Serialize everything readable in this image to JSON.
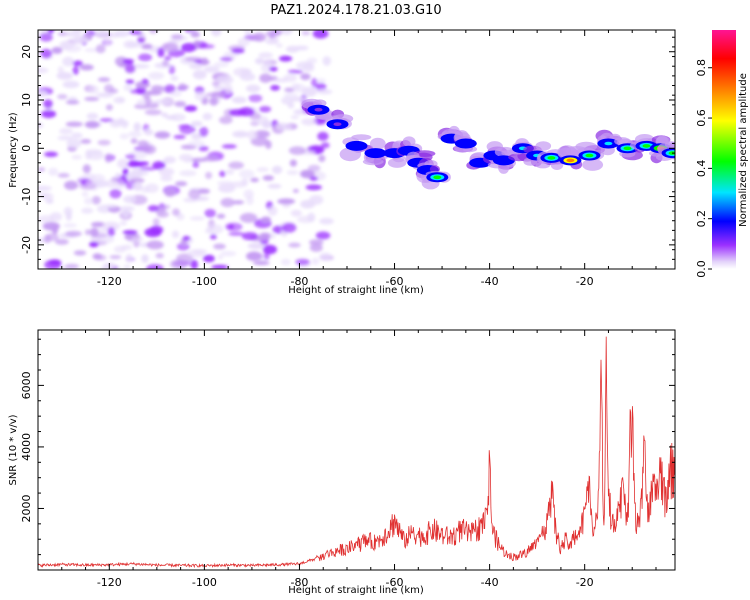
{
  "title": "PAZ1.2024.178.21.03.G10",
  "colors": {
    "snr_line": "#e03030",
    "frame": "#000000",
    "colormap": [
      "#ffffff",
      "#c8a8f4",
      "#8a2be2",
      "#0000ff",
      "#00e5ff",
      "#00ff00",
      "#ffff00",
      "#ff8000",
      "#ff0000",
      "#ff1493"
    ]
  },
  "chart_data": [
    {
      "type": "heatmap",
      "xlabel": "Height of straight line (km)",
      "ylabel": "Frequency (Hz)",
      "xlim": [
        -135,
        -1
      ],
      "ylim": [
        -25,
        24.5
      ],
      "x_ticks": [
        -120,
        -100,
        -80,
        -60,
        -40,
        -20
      ],
      "x_tick_labels": [
        "-120",
        "-100",
        "-80",
        "-60",
        "-40",
        "-20"
      ],
      "y_ticks": [
        -20,
        -10,
        0,
        10,
        20
      ],
      "y_tick_labels": [
        "-20",
        "-10",
        "0",
        "10",
        "20"
      ],
      "noise_region": {
        "x": [
          -135,
          -76
        ],
        "y": [
          -25,
          24.5
        ],
        "level": 0.12
      },
      "ridge": [
        {
          "x": -76,
          "y": 8,
          "level": 0.1
        },
        {
          "x": -72,
          "y": 5,
          "level": 0.15
        },
        {
          "x": -68,
          "y": 0.5,
          "level": 0.28
        },
        {
          "x": -64,
          "y": -1,
          "level": 0.28
        },
        {
          "x": -60,
          "y": -1,
          "level": 0.3
        },
        {
          "x": -57,
          "y": -0.5,
          "level": 0.22
        },
        {
          "x": -55,
          "y": -3,
          "level": 0.26
        },
        {
          "x": -53,
          "y": -4.5,
          "level": 0.3
        },
        {
          "x": -51,
          "y": -6,
          "level": 0.52
        },
        {
          "x": -48,
          "y": 2,
          "level": 0.22
        },
        {
          "x": -45,
          "y": 1,
          "level": 0.24
        },
        {
          "x": -42,
          "y": -3,
          "level": 0.2
        },
        {
          "x": -39,
          "y": -1.5,
          "level": 0.25
        },
        {
          "x": -37,
          "y": -2.5,
          "level": 0.22
        },
        {
          "x": -33,
          "y": 0,
          "level": 0.32
        },
        {
          "x": -30,
          "y": -1.5,
          "level": 0.4
        },
        {
          "x": -27,
          "y": -2,
          "level": 0.55
        },
        {
          "x": -23,
          "y": -2.5,
          "level": 0.85
        },
        {
          "x": -19,
          "y": -1.5,
          "level": 0.45
        },
        {
          "x": -15,
          "y": 1,
          "level": 0.35
        },
        {
          "x": -11,
          "y": 0,
          "level": 0.6
        },
        {
          "x": -7,
          "y": 0.5,
          "level": 0.55
        },
        {
          "x": -4,
          "y": 0,
          "level": 0.8
        },
        {
          "x": -1.5,
          "y": -1,
          "level": 0.45
        }
      ],
      "colorbar": {
        "label": "Normalized spectral amplitude",
        "range": [
          0,
          0.95
        ],
        "ticks": [
          0.0,
          0.2,
          0.4,
          0.6,
          0.8
        ],
        "tick_labels": [
          "0.0",
          "0.2",
          "0.4",
          "0.6",
          "0.8"
        ]
      }
    },
    {
      "type": "line",
      "xlabel": "Height of straight line (km)",
      "ylabel": "SNR (10 * v/v)",
      "xlim": [
        -135,
        -1
      ],
      "ylim": [
        0,
        7800
      ],
      "x_ticks": [
        -120,
        -100,
        -80,
        -60,
        -40,
        -20
      ],
      "x_tick_labels": [
        "-120",
        "-100",
        "-80",
        "-60",
        "-40",
        "-20"
      ],
      "y_ticks": [
        2000,
        4000,
        6000
      ],
      "y_tick_labels": [
        "2000",
        "4000",
        "6000"
      ],
      "series": [
        {
          "x": [
            -135,
            -130,
            -125,
            -120,
            -115,
            -110,
            -105,
            -100,
            -95,
            -90,
            -85,
            -80,
            -77,
            -74,
            -72,
            -70,
            -68,
            -66,
            -64,
            -62,
            -60,
            -58,
            -56,
            -54,
            -52,
            -50,
            -48,
            -46,
            -44,
            -42,
            -40.5,
            -40,
            -39.5,
            -38,
            -36,
            -34,
            -32,
            -30,
            -29,
            -28,
            -27,
            -26,
            -25,
            -24,
            -23,
            -22,
            -21,
            -20,
            -19,
            -18,
            -17,
            -16.5,
            -16,
            -15.5,
            -15,
            -14,
            -13,
            -12,
            -11,
            -10.5,
            -10,
            -9.5,
            -9,
            -8,
            -7.5,
            -7,
            -6,
            -5,
            -4,
            -3,
            -2,
            -1
          ],
          "y": [
            150,
            180,
            160,
            170,
            200,
            160,
            150,
            140,
            160,
            150,
            170,
            200,
            350,
            600,
            700,
            800,
            900,
            1100,
            1000,
            1300,
            1800,
            1100,
            1400,
            1200,
            1500,
            1300,
            1200,
            1500,
            1300,
            1600,
            2000,
            3800,
            1500,
            900,
            500,
            500,
            700,
            1000,
            1200,
            1800,
            2900,
            1300,
            800,
            1100,
            900,
            1300,
            1400,
            2000,
            3100,
            1400,
            2700,
            7400,
            900,
            7800,
            2400,
            1800,
            2200,
            3000,
            1500,
            4400,
            5600,
            2200,
            1500,
            2700,
            4600,
            2200,
            2900,
            2800,
            3700,
            2700,
            3500,
            4000
          ]
        }
      ]
    }
  ]
}
